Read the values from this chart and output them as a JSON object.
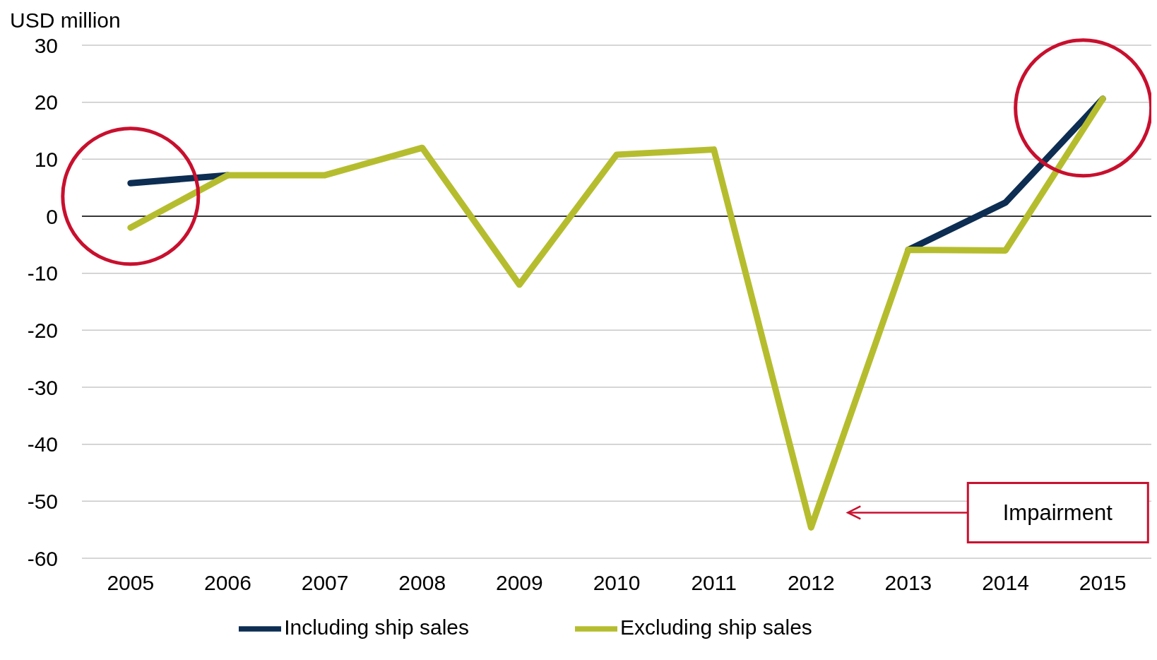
{
  "chart_data": {
    "type": "line",
    "ylabel": "USD million",
    "categories": [
      "2005",
      "2006",
      "2007",
      "2008",
      "2009",
      "2010",
      "2011",
      "2012",
      "2013",
      "2014",
      "2015"
    ],
    "series": [
      {
        "name": "Including ship sales",
        "color": "#0d2d52",
        "values": [
          5.8,
          7.2,
          null,
          null,
          null,
          null,
          null,
          null,
          -5.9,
          2.4,
          20.6
        ]
      },
      {
        "name": "Excluding ship sales",
        "color": "#b5bd2e",
        "values": [
          -2,
          7.2,
          7.2,
          12,
          -12,
          10.8,
          11.7,
          -54.6,
          -5.9,
          -6,
          20.6
        ]
      }
    ],
    "ylim": [
      -60,
      30
    ],
    "yticks": [
      -60,
      -50,
      -40,
      -30,
      -20,
      -10,
      0,
      10,
      20,
      30
    ],
    "grid": "y",
    "legend": "bottom",
    "marker": "none",
    "line_style": "solid",
    "ref_lines": [
      {
        "axis": "y",
        "value": 0,
        "color": "#000000"
      }
    ],
    "annotations": [
      "Impairment"
    ]
  }
}
